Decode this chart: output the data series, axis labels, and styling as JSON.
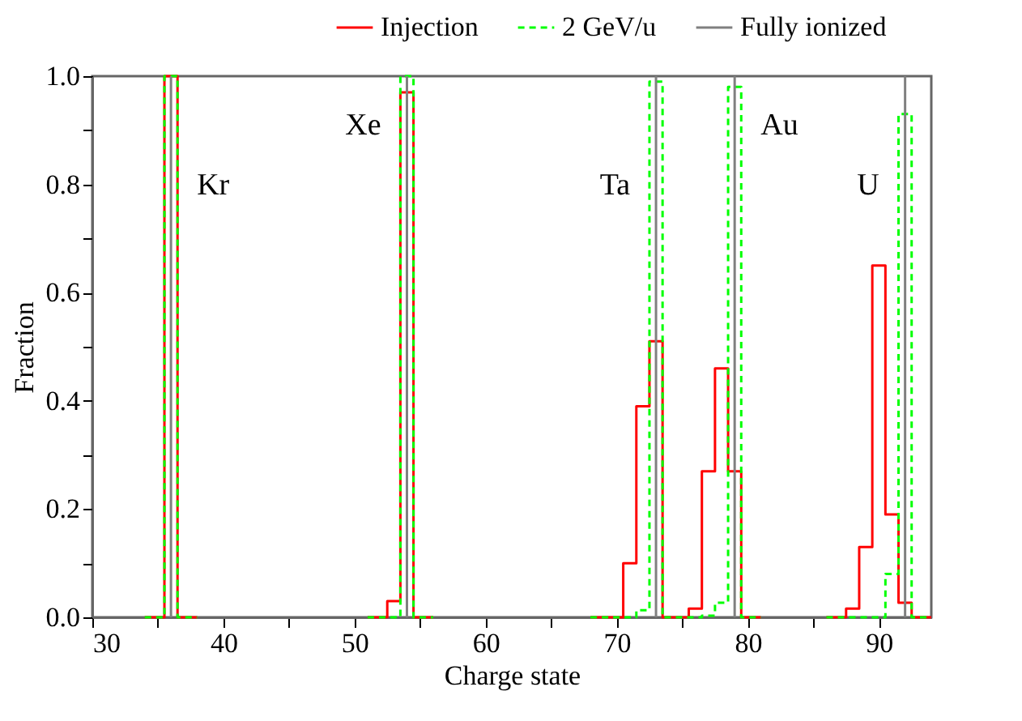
{
  "chart_data": {
    "type": "step",
    "xlabel": "Charge state",
    "ylabel": "Fraction",
    "series": [
      {
        "name": "Injection",
        "color": "#ff0000",
        "line_style": "solid",
        "x": [
          34,
          35,
          36,
          37,
          38,
          null,
          51,
          52,
          53,
          54,
          55,
          56,
          null,
          68,
          69,
          70,
          71,
          72,
          73,
          74,
          75,
          76,
          77,
          78,
          79,
          80,
          81,
          null,
          86,
          87,
          88,
          89,
          90,
          91,
          92,
          93,
          94
        ],
        "values": [
          0,
          0,
          1,
          0,
          0,
          null,
          0,
          0,
          0.03,
          0.97,
          0,
          0,
          null,
          0,
          0,
          0,
          0.1,
          0.39,
          0.51,
          0,
          0,
          0.016,
          0.27,
          0.46,
          0.27,
          0,
          0,
          null,
          0,
          0,
          0.016,
          0.13,
          0.65,
          0.19,
          0.027,
          0,
          0
        ]
      },
      {
        "name": "2 GeV/u",
        "color": "#00ff00",
        "line_style": "dashed",
        "x": [
          34,
          35,
          36,
          37,
          38,
          null,
          51,
          52,
          53,
          54,
          55,
          56,
          null,
          68,
          69,
          70,
          71,
          72,
          73,
          74,
          75,
          76,
          77,
          78,
          79,
          80,
          81,
          null,
          86,
          87,
          88,
          89,
          90,
          91,
          92,
          93,
          94
        ],
        "values": [
          0,
          0,
          1,
          0,
          0,
          null,
          0,
          0,
          0,
          1,
          0,
          0,
          null,
          0,
          0,
          0,
          0,
          0.013,
          0.99,
          0,
          0,
          0,
          0.003,
          0.027,
          0.98,
          0,
          0,
          null,
          0,
          0,
          0,
          0,
          0,
          0.08,
          0.93,
          0,
          0
        ]
      },
      {
        "name": "Fully ionized",
        "type": "line",
        "color": "#808080",
        "line_style": "solid",
        "x": [
          36,
          36,
          null,
          54,
          54,
          null,
          73,
          73,
          null,
          79,
          79,
          null,
          92,
          92
        ],
        "values": [
          0,
          1,
          null,
          0,
          1,
          null,
          0,
          1,
          null,
          0,
          1,
          null,
          0,
          1
        ]
      }
    ],
    "xlim": [
      30,
      94
    ],
    "xticks": [
      30,
      {
        "value": 35,
        "label": null
      },
      40,
      {
        "value": 45,
        "label": null
      },
      50,
      {
        "value": 55,
        "label": null
      },
      60,
      {
        "value": 65,
        "label": null
      },
      70,
      {
        "value": 75,
        "label": null
      },
      80,
      {
        "value": 85,
        "label": null
      },
      90
    ],
    "ylim": [
      0,
      1
    ],
    "yticks": [
      {
        "value": 0,
        "label": "0.0"
      },
      {
        "value": 0.1,
        "label": null
      },
      {
        "value": 0.2,
        "label": "0.2"
      },
      {
        "value": 0.3,
        "label": null
      },
      {
        "value": 0.4,
        "label": "0.4"
      },
      {
        "value": 0.5,
        "label": null
      },
      {
        "value": 0.6,
        "label": "0.6"
      },
      {
        "value": 0.7,
        "label": null
      },
      {
        "value": 0.8,
        "label": "0.8"
      },
      {
        "value": 0.9,
        "label": null
      },
      {
        "value": 1.0,
        "label": "1.0"
      }
    ],
    "annotations": [
      {
        "text": "Kr",
        "x": 36,
        "y": 0.8
      },
      {
        "text": "Xe",
        "x": 54,
        "y": 0.91
      },
      {
        "text": "Ta",
        "x": 73,
        "y": 0.8
      },
      {
        "text": "Au",
        "x": 79,
        "y": 0.91
      },
      {
        "text": "U",
        "x": 92,
        "y": 0.8
      }
    ],
    "legend": "top",
    "grid": false
  }
}
